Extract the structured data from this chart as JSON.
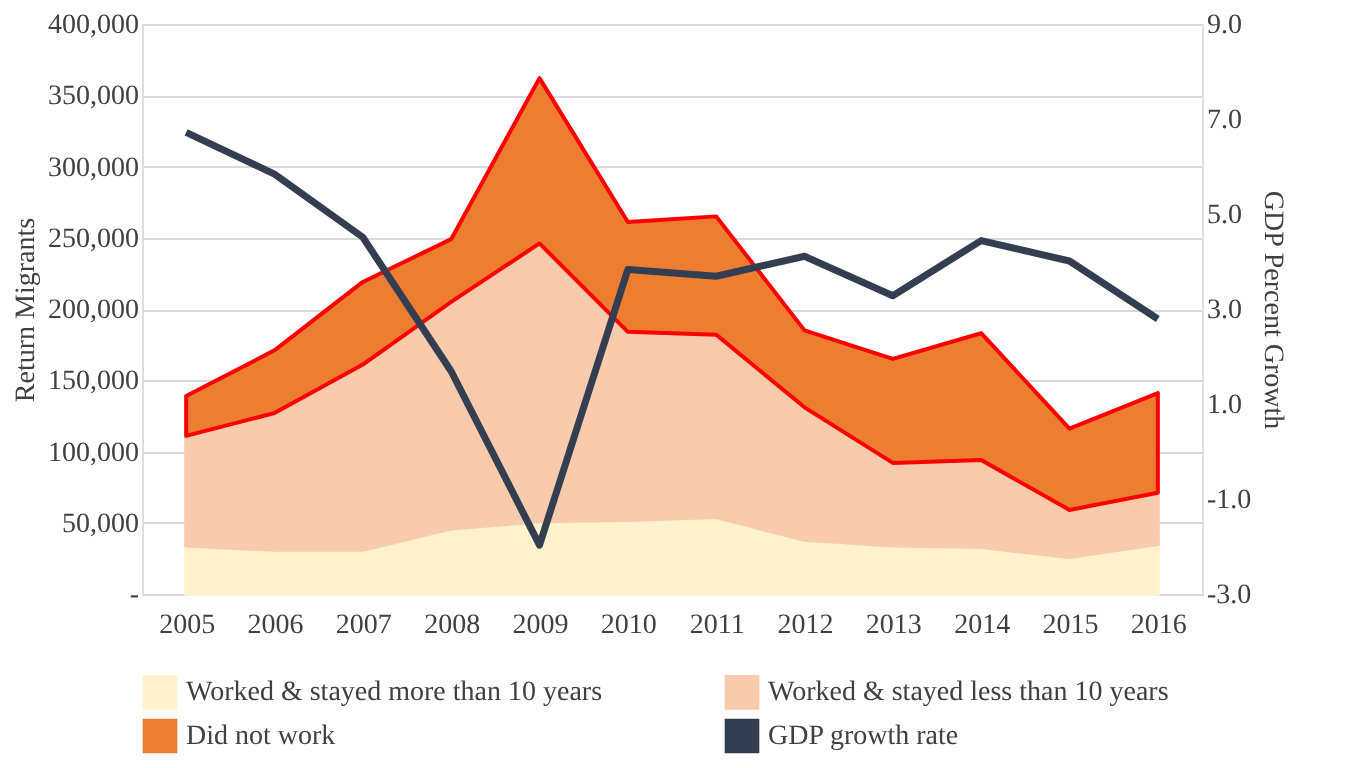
{
  "chart_data": {
    "type": "area",
    "stacked": true,
    "ylabel": "Return Migrants",
    "y2label": "GDP Percent Growth",
    "categories": [
      "2005",
      "2006",
      "2007",
      "2008",
      "2009",
      "2010",
      "2011",
      "2012",
      "2013",
      "2014",
      "2015",
      "2016"
    ],
    "ylim": [
      0,
      400000
    ],
    "yticks": [
      {
        "value": 0,
        "label": "-"
      },
      {
        "value": 50000,
        "label": "50,000"
      },
      {
        "value": 100000,
        "label": "100,000"
      },
      {
        "value": 150000,
        "label": "150,000"
      },
      {
        "value": 200000,
        "label": "200,000"
      },
      {
        "value": 250000,
        "label": "250,000"
      },
      {
        "value": 300000,
        "label": "300,000"
      },
      {
        "value": 350000,
        "label": "350,000"
      },
      {
        "value": 400000,
        "label": "400,000"
      }
    ],
    "y2lim": [
      -3,
      9
    ],
    "y2ticks": [
      {
        "value": -3,
        "label": "-3.0"
      },
      {
        "value": -1,
        "label": "-1.0"
      },
      {
        "value": 1,
        "label": "1.0"
      },
      {
        "value": 3,
        "label": "3.0"
      },
      {
        "value": 5,
        "label": "5.0"
      },
      {
        "value": 7,
        "label": "7.0"
      },
      {
        "value": 9,
        "label": "9.0"
      }
    ],
    "grid": "y",
    "legend": "bottom",
    "marker": "none",
    "series": [
      {
        "name": "Worked & stayed more than 10 years",
        "color": "#fff2cc",
        "values": [
          34000,
          31000,
          31000,
          46000,
          51000,
          52000,
          54000,
          38000,
          34000,
          33000,
          26000,
          35000
        ]
      },
      {
        "name": "Worked & stayed less than 10 years",
        "color": "#f8cbad",
        "values": [
          77000,
          96000,
          130000,
          159000,
          195000,
          132000,
          128000,
          93000,
          58000,
          61000,
          33000,
          36000
        ]
      },
      {
        "name": "Did not work",
        "color": "#ed7d31",
        "values": [
          28000,
          44000,
          58000,
          44000,
          116000,
          77000,
          83000,
          54000,
          73000,
          89000,
          57000,
          70000
        ]
      },
      {
        "name": "GDP growth rate",
        "type": "line",
        "axis": "y2",
        "color": "#333f50",
        "values": [
          6.72,
          5.84,
          4.51,
          1.69,
          -1.97,
          3.83,
          3.69,
          4.11,
          3.28,
          4.44,
          4.01,
          2.79
        ]
      }
    ]
  }
}
